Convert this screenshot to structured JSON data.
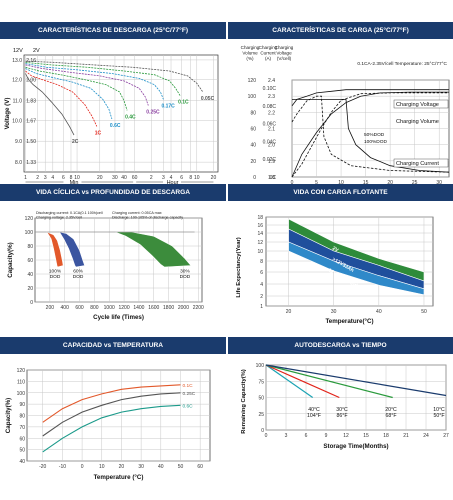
{
  "chart_data": [
    {
      "id": "discharge",
      "type": "line",
      "title": "CARACTERÍSTICAS DE DESCARGA (25°C/77°F)",
      "xlabel": "Discharge Time",
      "ylabel": "Voltage (V)",
      "y12_label": "12V",
      "y2_label": "2V",
      "y12_ticks": [
        "13.0",
        "12.0",
        "11.0",
        "10.0",
        "9.0",
        "8.0"
      ],
      "y2_ticks": [
        "2.16",
        "2.00",
        "1.83",
        "1.67",
        "1.50",
        "1.33"
      ],
      "y2_range": [
        1.25,
        2.2
      ],
      "x_ticks": [
        "1",
        "2",
        "3",
        "4",
        "6",
        "8",
        "10",
        "20",
        "30",
        "40",
        "60",
        "2",
        "3",
        "4",
        "6",
        "8",
        "10",
        "20"
      ],
      "x_groups": [
        "Min",
        "Hour"
      ],
      "series": [
        {
          "name": "2C",
          "color": "#555555",
          "x": [
            1,
            3,
            6,
            12,
            18,
            25,
            30,
            33
          ],
          "y": [
            2.05,
            2.0,
            1.96,
            1.9,
            1.82,
            1.72,
            1.62,
            1.55
          ]
        },
        {
          "name": "1C",
          "color": "#e2231a",
          "x": [
            1,
            5,
            12,
            22,
            32,
            40,
            45,
            48
          ],
          "y": [
            2.07,
            2.03,
            2.0,
            1.96,
            1.9,
            1.8,
            1.7,
            1.62
          ]
        },
        {
          "name": "0.6C",
          "color": "#1b8ec8",
          "x": [
            1,
            8,
            18,
            32,
            44,
            52,
            56,
            58
          ],
          "y": [
            2.09,
            2.05,
            2.02,
            1.98,
            1.93,
            1.84,
            1.76,
            1.68
          ]
        },
        {
          "name": "0.4C",
          "color": "#2a9a3c",
          "x": [
            1,
            10,
            24,
            40,
            54,
            63,
            66,
            68
          ],
          "y": [
            2.1,
            2.07,
            2.04,
            2.0,
            1.96,
            1.9,
            1.83,
            1.75
          ]
        },
        {
          "name": "0.25C",
          "color": "#8a3fa0",
          "x": [
            1,
            12,
            30,
            50,
            66,
            76,
            80,
            82
          ],
          "y": [
            2.12,
            2.09,
            2.06,
            2.03,
            1.99,
            1.93,
            1.86,
            1.79
          ]
        },
        {
          "name": "0.17C",
          "color": "#1b8ec8",
          "x": [
            1,
            15,
            35,
            58,
            76,
            86,
            90,
            92
          ],
          "y": [
            2.13,
            2.1,
            2.08,
            2.05,
            2.01,
            1.96,
            1.9,
            1.84
          ]
        },
        {
          "name": "0.1C",
          "color": "#2a9a3c",
          "x": [
            1,
            18,
            42,
            66,
            86,
            96,
            100,
            103
          ],
          "y": [
            2.14,
            2.12,
            2.1,
            2.07,
            2.04,
            1.99,
            1.93,
            1.87
          ]
        },
        {
          "name": "0.05C",
          "color": "#555555",
          "x": [
            1,
            20,
            46,
            72,
            96,
            108,
            114,
            118
          ],
          "y": [
            2.15,
            2.14,
            2.12,
            2.1,
            2.07,
            2.03,
            1.97,
            1.9
          ]
        }
      ]
    },
    {
      "id": "charge",
      "type": "line",
      "title": "CARACTERÍSTICAS DE CARGA (25°C/77°F)",
      "xlabel": "Charging Time(Hours)",
      "col_headers": [
        "Charging Volume (%)",
        "Charging Current (A)",
        "Charging Voltage (V/cell)"
      ],
      "note": "0.1CA-2.35V/cell  Temperature: 25°C/77°C",
      "vol_ticks": [
        "120",
        "100",
        "80",
        "60",
        "40",
        "20",
        "0"
      ],
      "cur_ticks": [
        "0.10C",
        "0.08C",
        "0.06C",
        "0.04C",
        "0.02C",
        "0C"
      ],
      "volt_ticks": [
        "2.4",
        "2.3",
        "2.2",
        "2.1",
        "2.0",
        "1.9",
        "1.8"
      ],
      "x_ticks": [
        "0",
        "5",
        "10",
        "15",
        "20",
        "25",
        "30"
      ],
      "xlim": [
        0,
        32
      ],
      "volume_range": [
        0,
        120
      ],
      "labels": [
        "Charging Voltage",
        "Charging Volume",
        "Charging Current",
        "50%DOD",
        "100%DOD"
      ],
      "series": [
        {
          "name": "Charging Voltage",
          "style": "solid",
          "x": [
            0,
            1,
            3,
            5,
            8,
            11,
            14,
            20,
            32
          ],
          "volume": [
            88,
            96,
            100,
            104,
            106,
            108,
            108,
            108,
            108
          ]
        },
        {
          "name": "Charging Volume",
          "style": "solid",
          "x": [
            0,
            2,
            5,
            8,
            11,
            14,
            18,
            24,
            32
          ],
          "volume": [
            0,
            28,
            55,
            78,
            92,
            100,
            104,
            105,
            105
          ]
        },
        {
          "name": "Charging Current",
          "style": "solid",
          "x": [
            0,
            11,
            11.5,
            13,
            16,
            20,
            26,
            32
          ],
          "volume": [
            96,
            96,
            60,
            40,
            24,
            14,
            8,
            6
          ]
        },
        {
          "name": "50%DOD",
          "style": "dashed",
          "x": [
            0,
            1,
            3,
            5,
            6,
            6.5,
            8,
            12,
            20,
            32
          ],
          "volume": [
            68,
            78,
            94,
            100,
            100,
            50,
            28,
            14,
            8,
            6
          ]
        },
        {
          "name": "100%DOD",
          "style": "dashed",
          "x": [
            0,
            2,
            4,
            6,
            8,
            10,
            14,
            20,
            32
          ],
          "volume": [
            0,
            16,
            38,
            60,
            80,
            95,
            103,
            104,
            104
          ]
        }
      ]
    },
    {
      "id": "cycle",
      "type": "area",
      "title": "VIDA CÍCLICA vs PROFUNDIDAD DE DESCARGA",
      "xlabel": "Cycle life (Times)",
      "ylabel": "Capacity(%)",
      "conditions": [
        "Discharging current: 0.1CA(0.1 100h)cell",
        "Charging voltage: 2.35V/cell",
        "Charging current: 0.05CA max",
        "Discharge: 100-105% of discharge capacity"
      ],
      "y_ticks": [
        "120",
        "100",
        "80",
        "60",
        "40",
        "20",
        "0"
      ],
      "x_ticks": [
        "200",
        "400",
        "600",
        "800",
        "1000",
        "1200",
        "1400",
        "1600",
        "1800",
        "2000",
        "2200"
      ],
      "xlim": [
        0,
        2250
      ],
      "ylim": [
        0,
        120
      ],
      "series": [
        {
          "name": "100% DOD",
          "color": "#e2582a",
          "x": [
            160,
            250,
            300,
            340,
            370,
            380
          ],
          "upper": [
            100,
            96,
            88,
            74,
            58,
            52
          ],
          "lower": [
            100,
            90,
            76,
            62,
            52,
            50
          ]
        },
        {
          "name": "60% DOD",
          "color": "#3b55a0",
          "x": [
            330,
            420,
            520,
            600,
            650,
            670
          ],
          "upper": [
            100,
            98,
            90,
            74,
            58,
            52
          ],
          "lower": [
            100,
            90,
            76,
            62,
            52,
            50
          ]
        },
        {
          "name": "30% DOD",
          "color": "#3c8c3c",
          "x": [
            1080,
            1300,
            1600,
            1850,
            2020,
            2100
          ],
          "upper": [
            100,
            100,
            94,
            80,
            62,
            52
          ],
          "lower": [
            100,
            94,
            82,
            66,
            54,
            50
          ]
        }
      ]
    },
    {
      "id": "float",
      "type": "area",
      "title": "VIDA CON CARGA FLOTANTE",
      "xlabel": "Temperature(°C)",
      "ylabel": "Life Expectancy(Year)",
      "y_ticks": [
        "18",
        "16",
        "14",
        "12",
        "10",
        "8",
        "6",
        "4",
        "2",
        "1"
      ],
      "x_ticks": [
        "20",
        "30",
        "40",
        "50"
      ],
      "xlim": [
        15,
        52
      ],
      "bands": [
        {
          "name": "2V",
          "color": "#2e8b3a",
          "x": [
            20,
            30,
            40,
            50
          ],
          "upper": [
            17.5,
            12,
            8.5,
            6
          ],
          "lower": [
            15,
            10,
            7.2,
            4.5
          ]
        },
        {
          "name": ">12V33Ah",
          "color": "#1f4f9c",
          "x": [
            20,
            30,
            40,
            50
          ],
          "upper": [
            15,
            10,
            7.2,
            4.5
          ],
          "lower": [
            12,
            8,
            5.4,
            3.2
          ]
        },
        {
          "name": "12V33 Ah and below",
          "color": "#2f89c9",
          "x": [
            20,
            30,
            40,
            50
          ],
          "upper": [
            12,
            8,
            5.4,
            3.2
          ],
          "lower": [
            10,
            6.2,
            3.8,
            2.2
          ]
        }
      ]
    },
    {
      "id": "temp",
      "type": "line",
      "title": "CAPACIDAD vs TEMPERATURA",
      "xlabel": "Temperature (°C)",
      "ylabel": "Capacity(%)",
      "y_ticks": [
        "120",
        "110",
        "100",
        "90",
        "80",
        "70",
        "60",
        "50",
        "40"
      ],
      "x_ticks": [
        "-20",
        "-10",
        "0",
        "10",
        "20",
        "30",
        "40",
        "50",
        "60"
      ],
      "xlim": [
        -28,
        65
      ],
      "ylim": [
        40,
        120
      ],
      "series": [
        {
          "name": "0.1C",
          "color": "#e2582a",
          "x": [
            -20,
            -10,
            0,
            10,
            20,
            30,
            40,
            50
          ],
          "y": [
            74,
            86,
            94,
            99,
            103,
            105,
            106,
            107
          ]
        },
        {
          "name": "0.25C",
          "color": "#555555",
          "x": [
            -20,
            -10,
            0,
            10,
            20,
            30,
            40,
            50
          ],
          "y": [
            62,
            74,
            83,
            89,
            94,
            97,
            99,
            100
          ]
        },
        {
          "name": "0.6C",
          "color": "#1b9a8a",
          "x": [
            -20,
            -10,
            0,
            10,
            20,
            30,
            40,
            50
          ],
          "y": [
            48,
            60,
            70,
            78,
            83,
            86,
            88,
            89
          ]
        }
      ]
    },
    {
      "id": "selfdis",
      "type": "line",
      "title": "AUTODESCARGA vs TIEMPO",
      "xlabel": "Storage Time(Months)",
      "ylabel": "Remaining Capacity(%)",
      "y_ticks": [
        "100",
        "75",
        "50",
        "25",
        "0"
      ],
      "x_ticks": [
        "0",
        "3",
        "6",
        "9",
        "12",
        "15",
        "18",
        "21",
        "24",
        "27"
      ],
      "xlim": [
        0,
        27
      ],
      "ylim": [
        0,
        100
      ],
      "series": [
        {
          "name": "40°C 104°F",
          "color": "#1ba3b3",
          "x": [
            0,
            7
          ],
          "y": [
            100,
            50
          ]
        },
        {
          "name": "30°C 86°F",
          "color": "#e2231a",
          "x": [
            0,
            11
          ],
          "y": [
            100,
            50
          ]
        },
        {
          "name": "20°C 68°F",
          "color": "#2a9a3c",
          "x": [
            0,
            19
          ],
          "y": [
            100,
            50
          ]
        },
        {
          "name": "10°C 50°F",
          "color": "#1a3b6d",
          "x": [
            0,
            27
          ],
          "y": [
            100,
            53
          ]
        }
      ],
      "labels": [
        {
          "line1": "40°C",
          "line2": "104°F"
        },
        {
          "line1": "30°C",
          "line2": "86°F"
        },
        {
          "line1": "20°C",
          "line2": "68°F"
        },
        {
          "line1": "10°C",
          "line2": "50°F"
        }
      ]
    }
  ]
}
